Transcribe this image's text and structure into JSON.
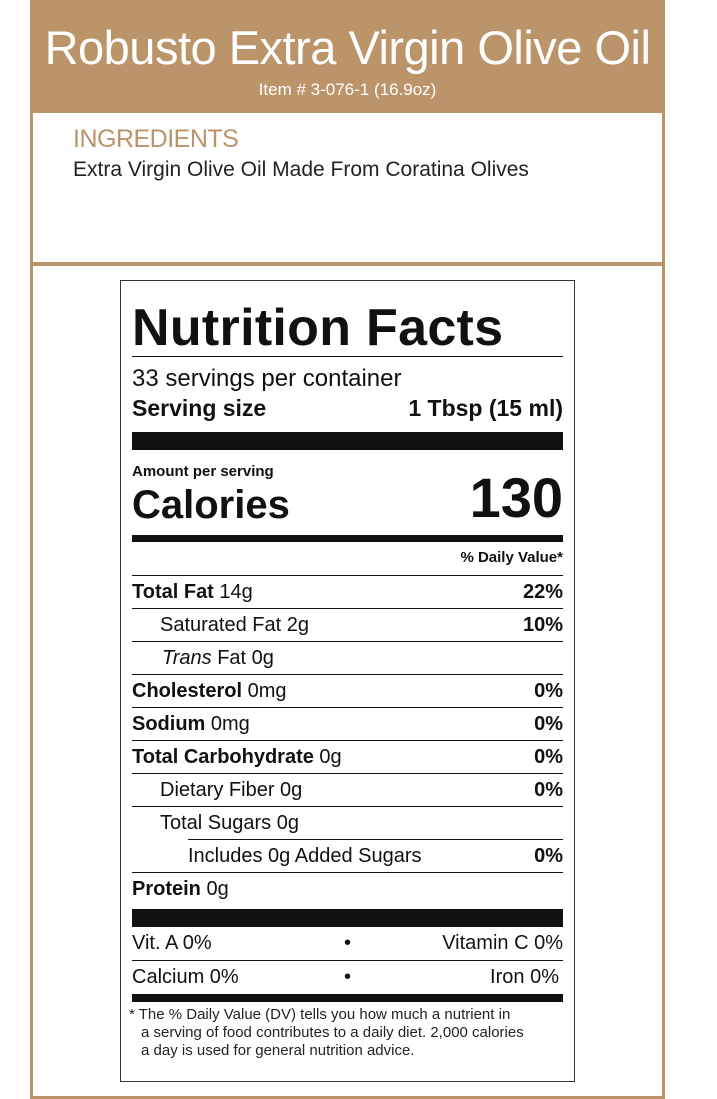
{
  "header": {
    "title": "Robusto Extra Virgin Olive Oil",
    "item": "Item # 3-076-1 (16.9oz)"
  },
  "ingredients": {
    "heading": "INGREDIENTS",
    "text": "Extra Virgin Olive Oil Made From Coratina Olives"
  },
  "colors": {
    "accent": "#bb9469"
  },
  "nutrition": {
    "title": "Nutrition Facts",
    "servings": "33 servings per container",
    "serving_size_label": "Serving size",
    "serving_size_value": "1 Tbsp (15 ml)",
    "amount_per_serving": "Amount per serving",
    "calories_label": "Calories",
    "calories_value": "130",
    "dv_header": "% Daily Value*",
    "rows": [
      {
        "bold": "Total Fat",
        "amount": " 14g",
        "dv": "22%"
      },
      {
        "bold": "",
        "amount": "Saturated Fat 2g",
        "dv": "10%"
      },
      {
        "italic": "Trans",
        "amount": " Fat 0g",
        "dv": ""
      },
      {
        "bold": "Cholesterol",
        "amount": " 0mg",
        "dv": "0%"
      },
      {
        "bold": "Sodium",
        "amount": " 0mg",
        "dv": "0%"
      },
      {
        "bold": "Total Carbohydrate",
        "amount": " 0g",
        "dv": "0%"
      },
      {
        "bold": "",
        "amount": "Dietary Fiber 0g",
        "dv": "0%"
      },
      {
        "bold": "",
        "amount": "Total Sugars 0g",
        "dv": ""
      },
      {
        "bold": "",
        "amount": "Includes 0g Added Sugars",
        "dv": "0%"
      },
      {
        "bold": "Protein",
        "amount": " 0g",
        "dv": ""
      }
    ],
    "vitamins": [
      {
        "left": "Vit. A 0%",
        "sep": "•",
        "right": "Vitamin C 0%"
      },
      {
        "left": "Calcium 0%",
        "sep": "•",
        "right": "Iron 0%"
      }
    ],
    "footnote": [
      "* The % Daily Value (DV) tells you how much a nutrient in",
      "a serving of food contributes to a daily diet. 2,000 calories",
      "a day is used for general nutrition advice."
    ]
  }
}
